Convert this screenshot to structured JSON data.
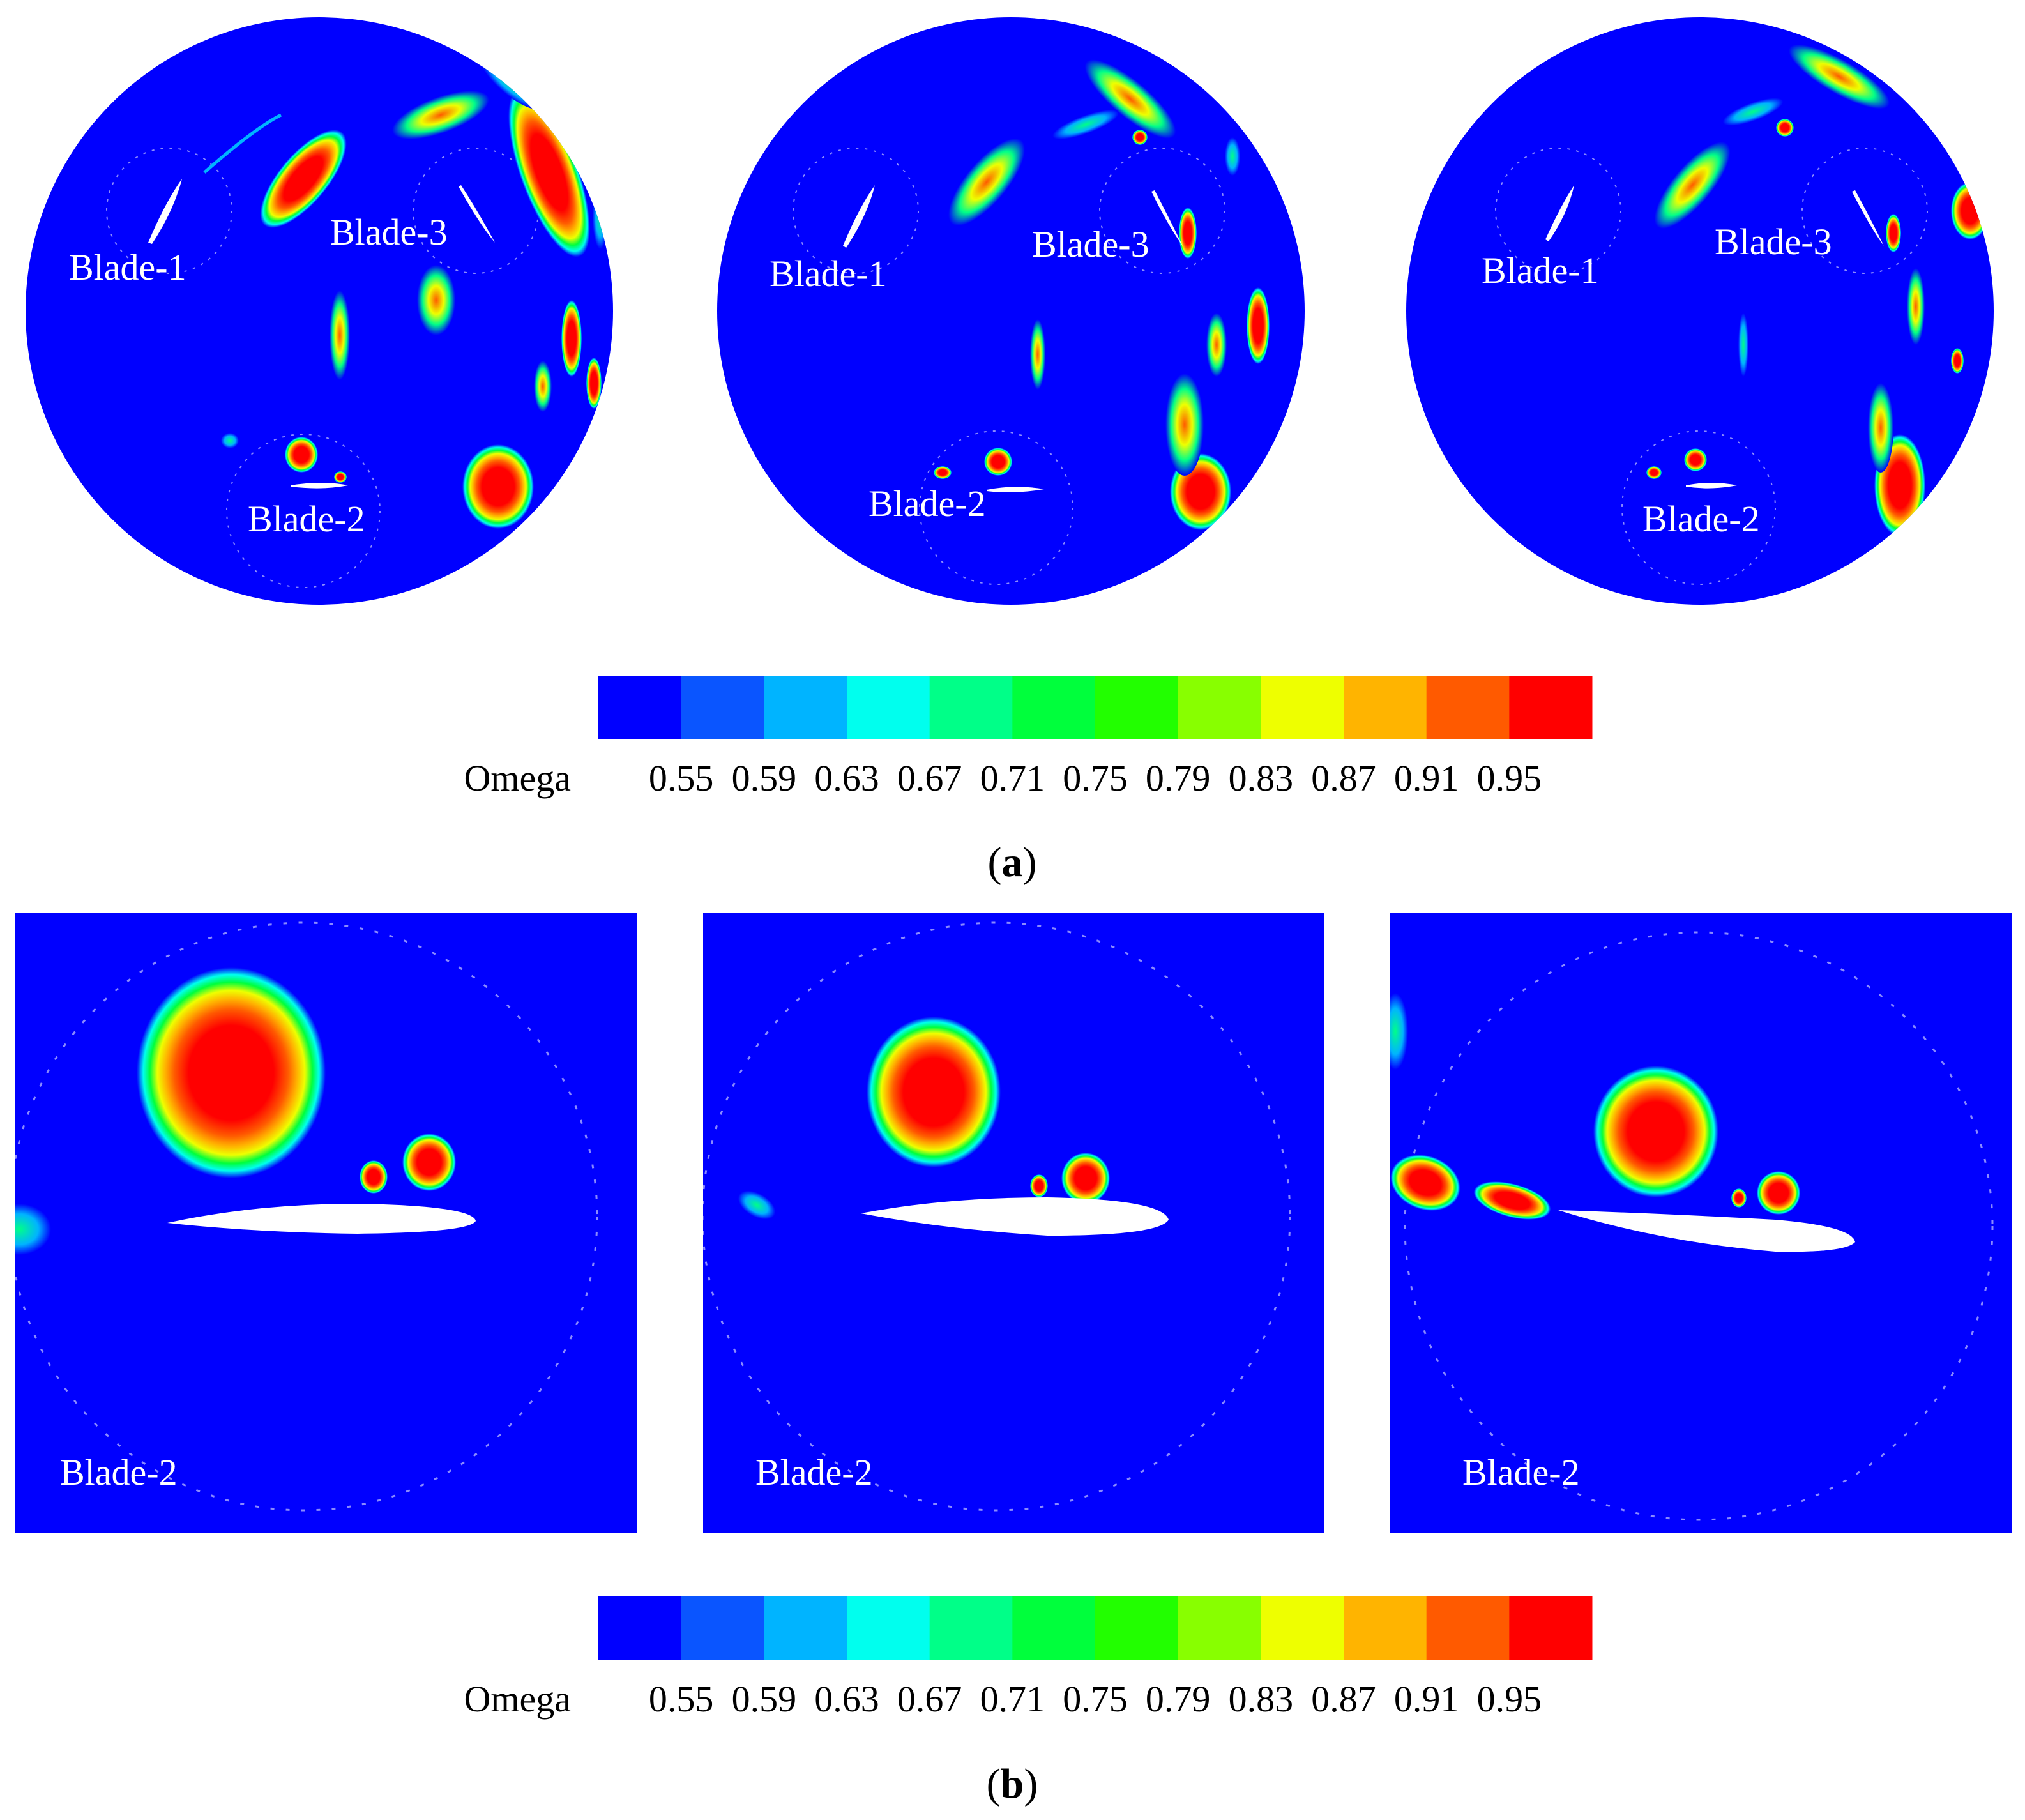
{
  "part_a": {
    "label": "a",
    "panels": [
      {
        "blade_labels": [
          "Blade-1",
          "Blade-3",
          "Blade-2"
        ]
      },
      {
        "blade_labels": [
          "Blade-1",
          "Blade-3",
          "Blade-2"
        ]
      },
      {
        "blade_labels": [
          "Blade-1",
          "Blade-3",
          "Blade-2"
        ]
      }
    ],
    "colorbar": {
      "title": "Omega",
      "tick_labels": [
        "0.55",
        "0.59",
        "0.63",
        "0.67",
        "0.71",
        "0.75",
        "0.79",
        "0.83",
        "0.87",
        "0.91",
        "0.95"
      ]
    }
  },
  "part_b": {
    "label": "b",
    "panels": [
      {
        "blade_label": "Blade-2"
      },
      {
        "blade_label": "Blade-2"
      },
      {
        "blade_label": "Blade-2"
      }
    ],
    "colorbar": {
      "title": "Omega",
      "tick_labels": [
        "0.55",
        "0.59",
        "0.63",
        "0.67",
        "0.71",
        "0.75",
        "0.79",
        "0.83",
        "0.87",
        "0.91",
        "0.95"
      ]
    }
  },
  "colorbar_colors": [
    "#0000ff",
    "#0a55ff",
    "#00b4ff",
    "#00ffee",
    "#00ff88",
    "#00ff3c",
    "#22ff00",
    "#88ff00",
    "#eeff00",
    "#ffb400",
    "#ff5a00",
    "#ff0000"
  ]
}
